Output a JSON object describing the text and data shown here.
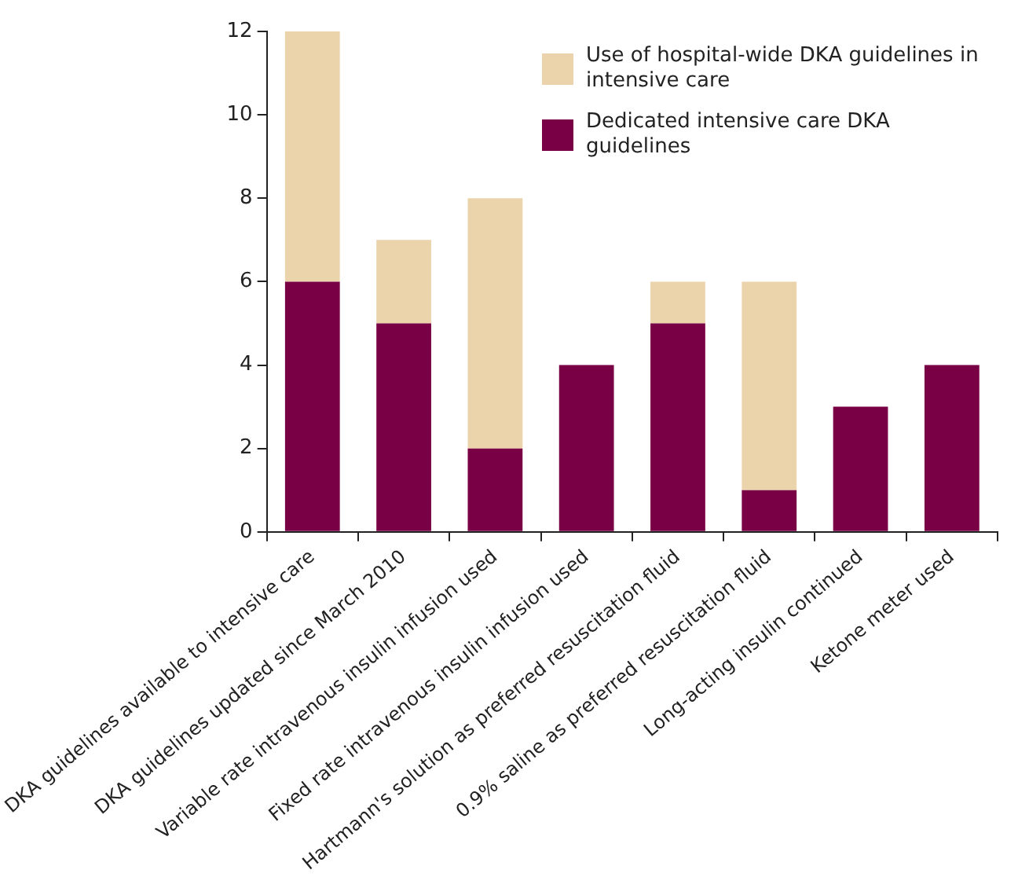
{
  "chart_data": {
    "type": "bar",
    "stacked": true,
    "categories": [
      "DKA guidelines available to intensive care",
      "DKA guidelines updated since March 2010",
      "Variable rate intravenous insulin infusion used",
      "Fixed rate intravenous insulin infusion used",
      "Hartmann's solution as preferred resuscitation fluid",
      "0.9% saline as preferred resuscitation fluid",
      "Long-acting insulin continued",
      "Ketone meter used"
    ],
    "series": [
      {
        "name": "Dedicated intensive care DKA guidelines",
        "color": "#7a0046",
        "values": [
          6,
          5,
          2,
          4,
          5,
          1,
          3,
          4
        ]
      },
      {
        "name": "Use of hospital-wide DKA guidelines in intensive care",
        "color": "#ebd4ac",
        "values": [
          6,
          2,
          6,
          0,
          1,
          5,
          0,
          0
        ]
      }
    ],
    "ylim": [
      0,
      12
    ],
    "yticks": [
      0,
      2,
      4,
      6,
      8,
      10,
      12
    ],
    "grid": false,
    "legend": "top right"
  }
}
